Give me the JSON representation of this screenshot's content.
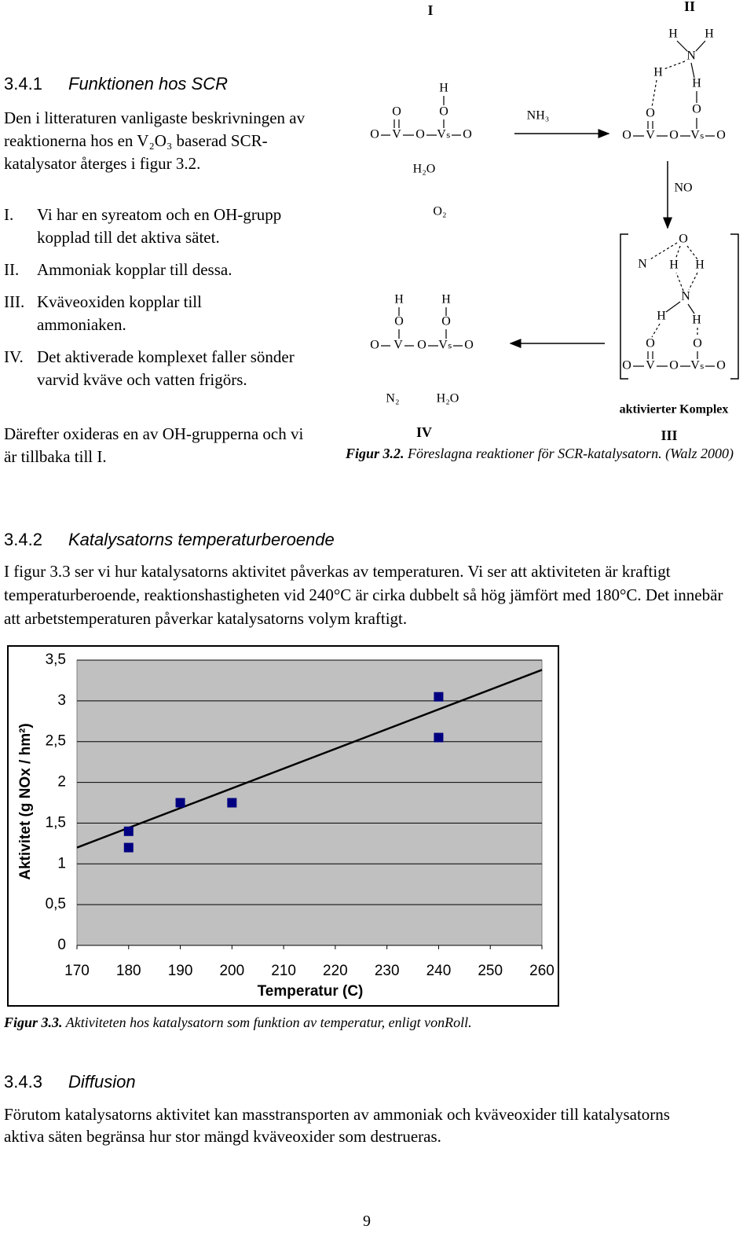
{
  "section1": {
    "number": "3.4.1",
    "title": "Funktionen hos SCR",
    "intro": "Den i litteraturen vanligaste beskrivningen av reaktionerna hos en V₂O₃ baserad SCR-katalysator återges i figur 3.2.",
    "list": [
      {
        "marker": "I.",
        "text": "Vi har en syreatom och en OH-grupp kopplad till det aktiva sätet."
      },
      {
        "marker": "II.",
        "text": "Ammoniak kopplar till dessa."
      },
      {
        "marker": "III.",
        "text": "Kväveoxiden kopplar till ammoniaken."
      },
      {
        "marker": "IV.",
        "text": "Det aktiverade komplexet faller sönder varvid kväve och vatten frigörs."
      }
    ],
    "outro": "Därefter oxideras en av OH-grupperna och vi är tillbaka till I."
  },
  "diagram": {
    "structures": [
      [
        "O",
        "H",
        "O",
        "O",
        "V",
        "O",
        "Vₛ",
        "O"
      ],
      [
        "H",
        "H",
        "N",
        "H",
        "H",
        "O",
        "O",
        "O",
        "V",
        "O",
        "Vₛ",
        "O"
      ],
      [
        "O",
        "N",
        "H",
        "H",
        "N",
        "H",
        "H",
        "O",
        "O",
        "O",
        "V",
        "O",
        "Vₛ",
        "O"
      ],
      [
        "H",
        "H",
        "O",
        "O",
        "O",
        "V",
        "O",
        "Vₛ",
        "O"
      ]
    ],
    "labels": [
      "I",
      "II",
      "NH₃",
      "H₂O",
      "O₂",
      "NO",
      "N₂",
      "H₂O",
      "aktivierter Komplex",
      "IV",
      "III"
    ]
  },
  "figure1": {
    "label": "Figur 3.2.",
    "text": "Föreslagna reaktioner för SCR-katalysatorn. (Walz 2000)"
  },
  "section2": {
    "number": "3.4.2",
    "title": "Katalysatorns temperaturberoende",
    "text": "I figur 3.3 ser vi hur katalysatorns aktivitet påverkas av temperaturen. Vi ser att aktiviteten är kraftigt temperaturberoende, reaktionshastigheten vid 240°C är cirka dubbelt så hög jämfört med 180°C. Det innebär att arbetstemperaturen påverkar katalysatorns volym kraftigt."
  },
  "chart_data": {
    "type": "scatter",
    "x_label": "Temperatur (C)",
    "y_label": "Aktivitet (g NOx / hm²)",
    "xlim": [
      170,
      260
    ],
    "ylim": [
      0,
      3.5
    ],
    "xticks": [
      170,
      180,
      190,
      200,
      210,
      220,
      230,
      240,
      250,
      260
    ],
    "yticks": [
      0,
      {
        "value": 0.5,
        "label": "0,5"
      },
      1,
      {
        "value": 1.5,
        "label": "1,5"
      },
      2,
      {
        "value": 2.5,
        "label": "2,5"
      },
      3,
      {
        "value": 3.5,
        "label": "3,5"
      }
    ],
    "grid": true,
    "plot_background": "#c0c0c0",
    "series": [
      {
        "color": "#000080",
        "x": [
          180,
          180,
          190,
          200,
          240,
          240
        ],
        "values": [
          1.4,
          1.2,
          1.75,
          1.75,
          3.05,
          2.55
        ]
      }
    ],
    "trendline": {
      "color": "#000000",
      "x": [
        170,
        260
      ],
      "values": [
        1.2,
        3.38
      ]
    }
  },
  "figure2": {
    "label": "Figur 3.3.",
    "text": "Aktiviteten hos katalysatorn som funktion av temperatur, enligt vonRoll."
  },
  "section3": {
    "number": "3.4.3",
    "title": "Diffusion",
    "text": "Förutom katalysatorns aktivitet kan masstransporten av ammoniak och kväveoxider till katalysatorns aktiva säten begränsa hur stor mängd kväveoxider som destrueras."
  },
  "page_number": "9"
}
